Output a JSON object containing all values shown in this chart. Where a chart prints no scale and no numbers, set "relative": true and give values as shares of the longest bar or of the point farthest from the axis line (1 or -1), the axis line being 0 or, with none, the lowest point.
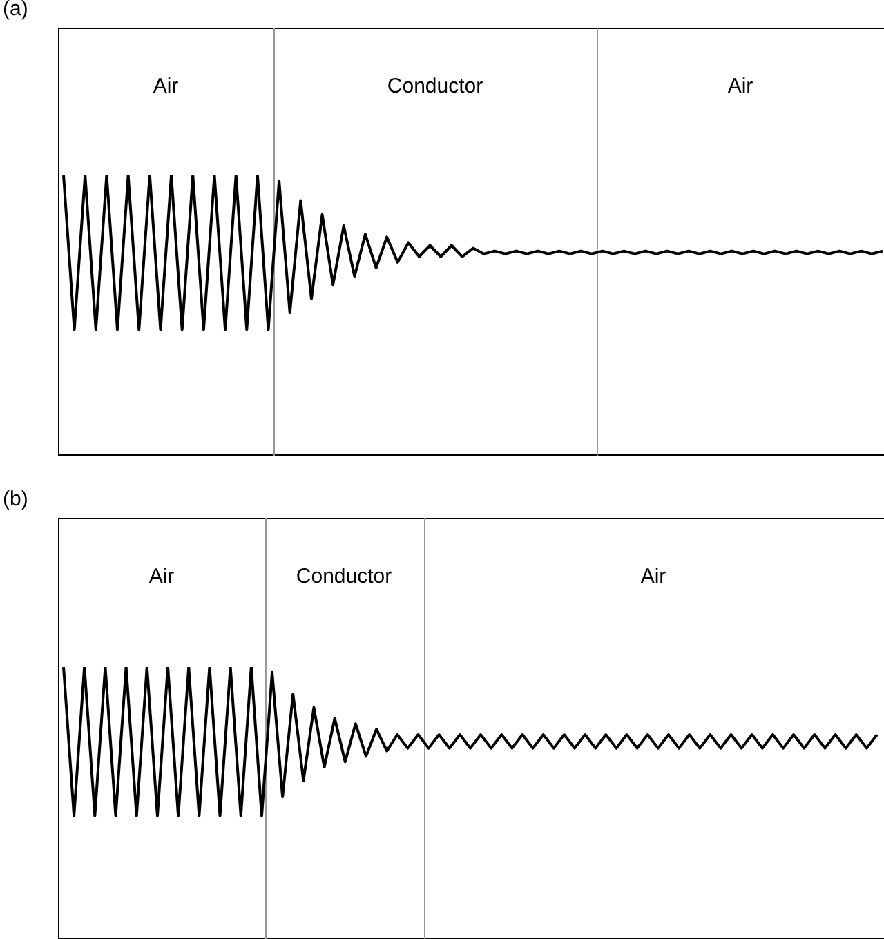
{
  "chart_data": [
    {
      "type": "line",
      "title": "(a)",
      "relative": true,
      "tick_labels": false,
      "annotations": [
        "Air",
        "Conductor",
        "Air"
      ],
      "categories": [
        null,
        null,
        null,
        null,
        null,
        null,
        null,
        null,
        null,
        null,
        null,
        null,
        null,
        null,
        null,
        null,
        null,
        null,
        null,
        null,
        null,
        null,
        null,
        null,
        null,
        null,
        null,
        null,
        null,
        null,
        null,
        null,
        null,
        null,
        null,
        null,
        null,
        null,
        null,
        null,
        null,
        null,
        null,
        null,
        null,
        null,
        null,
        null,
        null,
        null,
        null,
        null,
        null,
        null,
        null,
        null,
        null,
        null,
        null,
        null,
        null,
        null,
        null,
        null,
        null,
        null,
        null,
        null,
        null,
        null,
        null,
        null,
        null,
        null,
        null,
        null,
        null
      ],
      "series": [
        {
          "color": "#000000",
          "values": [
            1,
            0.45,
            1,
            0.45,
            1,
            0.45,
            1,
            0.45,
            1,
            0.45,
            1,
            0.45,
            1,
            0.45,
            1,
            0.45,
            1,
            0.45,
            1,
            0.45,
            0.98,
            0.51,
            0.91,
            0.56,
            0.86,
            0.61,
            0.82,
            0.64,
            0.79,
            0.67,
            0.78,
            0.69,
            0.76,
            0.71,
            0.75,
            0.71,
            0.75,
            0.71,
            0.74,
            0.72,
            0.73,
            0.72,
            0.73,
            0.72,
            0.73,
            0.72,
            0.73,
            0.72,
            0.73,
            0.72,
            0.73,
            0.72,
            0.73,
            0.72,
            0.73,
            0.72,
            0.73,
            0.72,
            0.73,
            0.72,
            0.73,
            0.72,
            0.73,
            0.72,
            0.73,
            0.72,
            0.73,
            0.72,
            0.73,
            0.72,
            0.73,
            0.72,
            0.73,
            0.72,
            0.73,
            0.72,
            0.73
          ]
        }
      ]
    },
    {
      "type": "line",
      "title": "(b)",
      "relative": true,
      "tick_labels": false,
      "annotations": [
        "Air",
        "Conductor",
        "Air"
      ],
      "categories": [
        null,
        null,
        null,
        null,
        null,
        null,
        null,
        null,
        null,
        null,
        null,
        null,
        null,
        null,
        null,
        null,
        null,
        null,
        null,
        null,
        null,
        null,
        null,
        null,
        null,
        null,
        null,
        null,
        null,
        null,
        null,
        null,
        null,
        null,
        null,
        null,
        null,
        null,
        null,
        null,
        null,
        null,
        null,
        null,
        null,
        null,
        null,
        null,
        null,
        null,
        null,
        null,
        null,
        null,
        null,
        null,
        null,
        null,
        null,
        null,
        null,
        null,
        null,
        null,
        null,
        null,
        null,
        null,
        null,
        null,
        null,
        null,
        null,
        null,
        null,
        null,
        null,
        null,
        null
      ],
      "series": [
        {
          "color": "#000000",
          "values": [
            1,
            0.45,
            1,
            0.45,
            1,
            0.45,
            1,
            0.45,
            1,
            0.45,
            1,
            0.45,
            1,
            0.45,
            1,
            0.45,
            1,
            0.45,
            1,
            0.45,
            0.98,
            0.52,
            0.9,
            0.58,
            0.85,
            0.63,
            0.81,
            0.65,
            0.79,
            0.67,
            0.77,
            0.69,
            0.75,
            0.7,
            0.75,
            0.7,
            0.75,
            0.7,
            0.75,
            0.7,
            0.75,
            0.7,
            0.75,
            0.7,
            0.75,
            0.7,
            0.75,
            0.7,
            0.75,
            0.7,
            0.75,
            0.7,
            0.75,
            0.7,
            0.75,
            0.7,
            0.75,
            0.7,
            0.75,
            0.7,
            0.75,
            0.7,
            0.75,
            0.7,
            0.75,
            0.7,
            0.75,
            0.7,
            0.75,
            0.7,
            0.75,
            0.7,
            0.75,
            0.7,
            0.75,
            0.7,
            0.75,
            0.7,
            0.75
          ]
        }
      ]
    }
  ]
}
